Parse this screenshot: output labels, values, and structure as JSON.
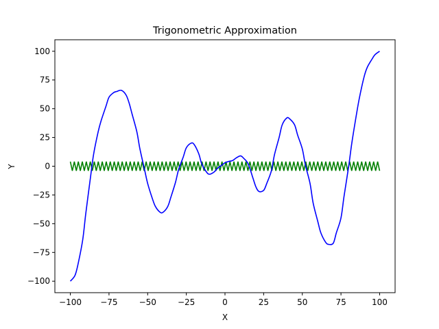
{
  "chart_data": {
    "type": "line",
    "title": "Trigonometric Approximation",
    "xlabel": "X",
    "ylabel": "Y",
    "xlim": [
      -110,
      110
    ],
    "ylim": [
      -110,
      110
    ],
    "grid": false,
    "legend": "none",
    "x_ticks": [
      -100,
      -75,
      -50,
      -25,
      0,
      25,
      50,
      75,
      100
    ],
    "x_tick_labels": [
      "−100",
      "−75",
      "−50",
      "−25",
      "0",
      "25",
      "50",
      "75",
      "100"
    ],
    "y_ticks": [
      -100,
      -75,
      -50,
      -25,
      0,
      25,
      50,
      75,
      100
    ],
    "y_tick_labels": [
      "−100",
      "−75",
      "−50",
      "−25",
      "0",
      "25",
      "50",
      "75",
      "100"
    ],
    "series": [
      {
        "color": "#0000ff",
        "x": [
          -100,
          -97,
          -95,
          -92,
          -90,
          -87,
          -85,
          -82,
          -80,
          -77,
          -75,
          -72,
          -70,
          -67,
          -64,
          -62,
          -60,
          -57,
          -55,
          -52,
          -50,
          -47,
          -45,
          -42,
          -40,
          -37,
          -35,
          -32,
          -30,
          -27,
          -25,
          -22,
          -20,
          -17,
          -15,
          -12,
          -10,
          -7,
          -5,
          -2,
          0,
          2,
          5,
          7,
          10,
          12,
          15,
          18,
          20,
          22,
          25,
          27,
          30,
          32,
          35,
          37,
          40,
          42,
          45,
          47,
          50,
          52,
          55,
          57,
          60,
          62,
          65,
          67,
          70,
          72,
          75,
          77,
          80,
          82,
          85,
          87,
          90,
          92,
          95,
          97,
          100
        ],
        "y": [
          -100,
          -95,
          -85,
          -64,
          -41,
          -10,
          10,
          30,
          40,
          52,
          60,
          64,
          65,
          66,
          62,
          55,
          45,
          30,
          15,
          -3,
          -15,
          -28,
          -35,
          -40,
          -40,
          -35,
          -27,
          -14,
          -3,
          8,
          16,
          20,
          19,
          11,
          2,
          -5,
          -7,
          -5,
          -2,
          1,
          3,
          4,
          5,
          7,
          9,
          7,
          2,
          -10,
          -18,
          -22,
          -21,
          -15,
          -4,
          10,
          25,
          36,
          42,
          41,
          36,
          27,
          15,
          1,
          -15,
          -32,
          -48,
          -58,
          -66,
          -68,
          -67,
          -58,
          -45,
          -26,
          0,
          20,
          45,
          60,
          78,
          86,
          93,
          97,
          100
        ]
      },
      {
        "color": "#008000",
        "oscillation": {
          "x_start": -100,
          "x_end": 100,
          "amplitude": 4,
          "half_cycles": 155
        }
      }
    ]
  }
}
